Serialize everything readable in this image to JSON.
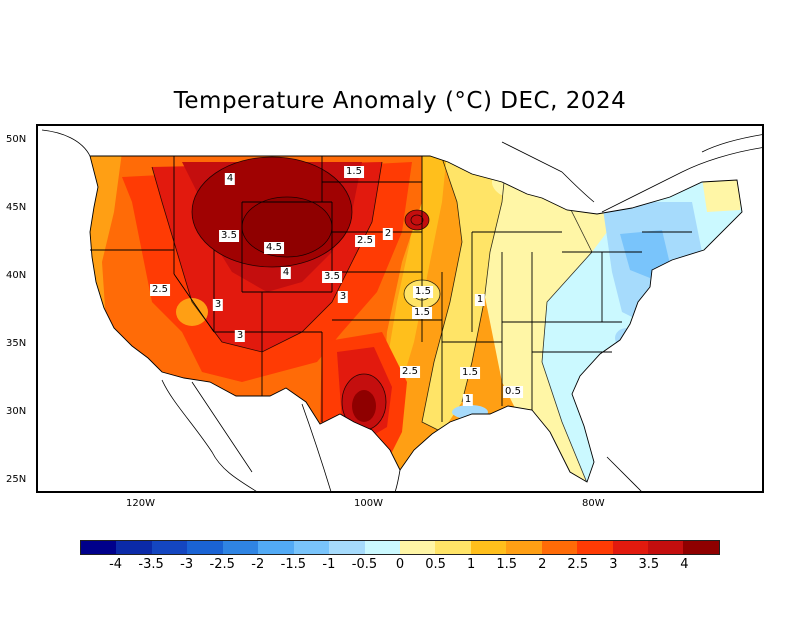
{
  "title": "Temperature Anomaly (°C) DEC, 2024",
  "y_axis_labels": [
    "50N",
    "45N",
    "40N",
    "35N",
    "30N",
    "25N"
  ],
  "x_axis_labels": [
    "120W",
    "100W",
    "80W"
  ],
  "contour_labels": [
    "4",
    "3.5",
    "4.5",
    "4",
    "3.5",
    "3",
    "2.5",
    "3",
    "3",
    "1.5",
    "2",
    "2.5",
    "1.5",
    "1",
    "1.5",
    "2.5",
    "1.5",
    "1",
    "0.5"
  ],
  "colorbar": {
    "colors": [
      "#00008b",
      "#0b2aa8",
      "#1446c0",
      "#1a63d4",
      "#2f84e3",
      "#52aaf5",
      "#79c4fb",
      "#a6dbfc",
      "#cbf9ff",
      "#fff6a6",
      "#ffe467",
      "#ffbf1c",
      "#ff9f14",
      "#ff6b07",
      "#ff3b04",
      "#e21a0e",
      "#c40e0e",
      "#8f0000"
    ],
    "labels": [
      "-4",
      "-3.5",
      "-3",
      "-2.5",
      "-2",
      "-1.5",
      "-1",
      "-0.5",
      "0",
      "0.5",
      "1",
      "1.5",
      "2",
      "2.5",
      "3",
      "3.5",
      "4"
    ]
  }
}
